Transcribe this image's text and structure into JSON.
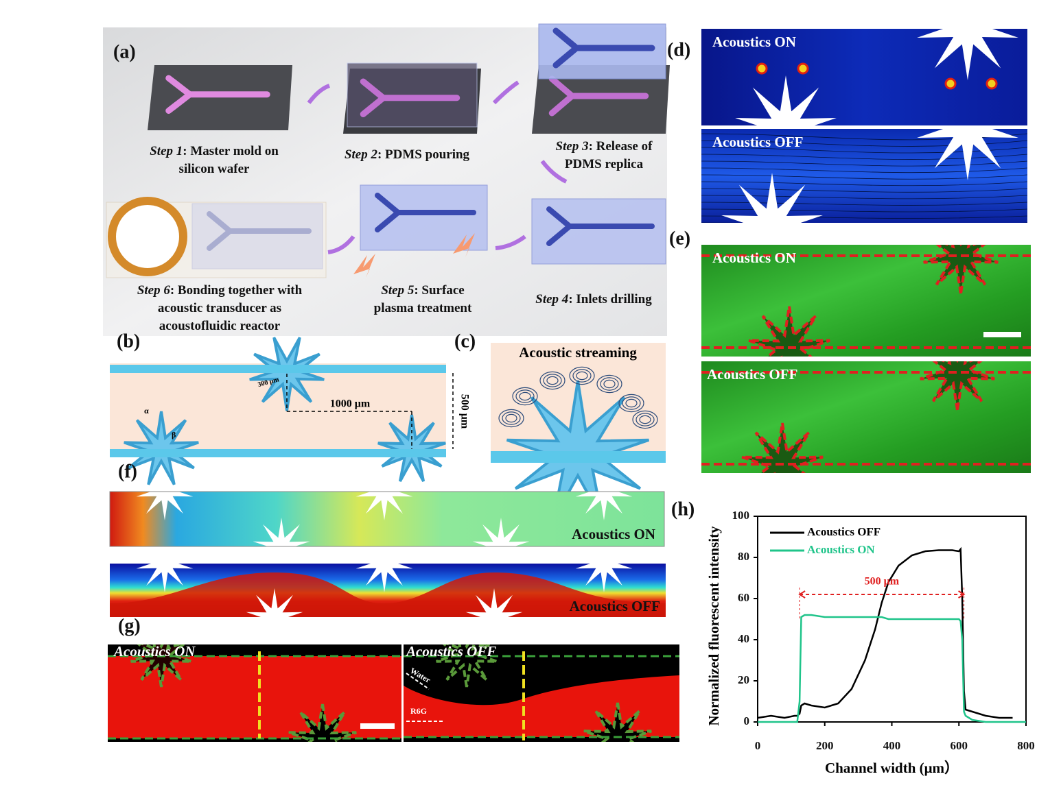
{
  "panels": {
    "a": {
      "label": "(a)",
      "steps": [
        {
          "step": "Step 1",
          "lines": [
            ": Master mold on",
            "silicon wafer"
          ]
        },
        {
          "step": "Step 2",
          "lines": [
            ": PDMS pouring"
          ]
        },
        {
          "step": "Step 3",
          "lines": [
            ": Release of",
            "PDMS replica"
          ]
        },
        {
          "step": "Step 4",
          "lines": [
            ": Inlets drilling"
          ]
        },
        {
          "step": "Step 5",
          "lines": [
            ": Surface",
            "plasma treatment"
          ]
        },
        {
          "step": "Step 6",
          "lines": [
            ": Bonding together with",
            "acoustic transducer as",
            "acoustofluidic reactor"
          ]
        }
      ]
    },
    "b": {
      "label": "(b)",
      "tip": "300 μm",
      "alpha": "α",
      "beta": "β",
      "spacing": "1000 μm",
      "width": "500 μm"
    },
    "c": {
      "label": "(c)",
      "title": "Acoustic streaming"
    },
    "d": {
      "label": "(d)",
      "on": "Acoustics ON",
      "off": "Acoustics OFF"
    },
    "e": {
      "label": "(e)",
      "on": "Acoustics ON",
      "off": "Acoustics OFF"
    },
    "f": {
      "label": "(f)",
      "on": "Acoustics ON",
      "off": "Acoustics OFF"
    },
    "g": {
      "label": "(g)",
      "on": "Acoustics ON",
      "off": "Acoustics OFF",
      "water": "Water",
      "r6g": "R6G"
    },
    "h": {
      "label": "(h)"
    }
  },
  "chart_data": {
    "type": "line",
    "xlabel": "Channel width (μm）",
    "ylabel": "Normalized fluorescent intensity",
    "x": [
      0,
      40,
      80,
      110,
      118,
      125,
      130,
      140,
      160,
      200,
      240,
      280,
      320,
      350,
      370,
      390,
      420,
      460,
      500,
      540,
      580,
      600,
      605,
      610,
      615,
      620,
      640,
      680,
      720,
      760,
      800
    ],
    "series": [
      {
        "name": "Acoustics OFF",
        "color": "#000000",
        "values": [
          2,
          3,
          2,
          3,
          3,
          4,
          8,
          9,
          8,
          7,
          9,
          16,
          30,
          45,
          58,
          68,
          76,
          81,
          83,
          83.5,
          83.5,
          83,
          84,
          60,
          15,
          6,
          5,
          3,
          2,
          2,
          null
        ]
      },
      {
        "name": "Acoustics ON",
        "color": "#1fc48a",
        "values": [
          0,
          0,
          0,
          0,
          0,
          10,
          51,
          52,
          52,
          51,
          51,
          51,
          51,
          51,
          51,
          50,
          50,
          50,
          50,
          50,
          50,
          50,
          49,
          40,
          5,
          3,
          1,
          0,
          0,
          0,
          0
        ]
      }
    ],
    "annotation": {
      "text": "500 μm",
      "from": 125,
      "to": 615,
      "y": 62,
      "color": "#e02020"
    },
    "xlim": [
      0,
      800
    ],
    "xticks": [
      0,
      200,
      400,
      600,
      800
    ],
    "ylim": [
      0,
      100
    ],
    "yticks": [
      0,
      20,
      40,
      60,
      80,
      100
    ],
    "legend": "upper left"
  }
}
